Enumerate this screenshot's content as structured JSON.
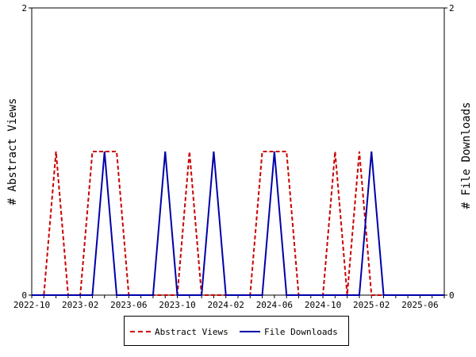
{
  "chart_data": {
    "type": "line",
    "xlabel": "",
    "ylabel_left": "# Abstract Views",
    "ylabel_right": "# File Downloads",
    "ylim": [
      0,
      2
    ],
    "y_ticks": [
      "0",
      "2"
    ],
    "x_tick_labels": [
      "2022-10",
      "2023-02",
      "2023-06",
      "2023-10",
      "2024-02",
      "2024-06",
      "2024-10",
      "2025-02",
      "2025-06"
    ],
    "x": [
      "2022-10",
      "2022-11",
      "2022-12",
      "2023-01",
      "2023-02",
      "2023-03",
      "2023-04",
      "2023-05",
      "2023-06",
      "2023-07",
      "2023-08",
      "2023-09",
      "2023-10",
      "2023-11",
      "2023-12",
      "2024-01",
      "2024-02",
      "2024-03",
      "2024-04",
      "2024-05",
      "2024-06",
      "2024-07",
      "2024-08",
      "2024-09",
      "2024-10",
      "2024-11",
      "2024-12",
      "2025-01",
      "2025-02",
      "2025-03",
      "2025-04",
      "2025-05",
      "2025-06",
      "2025-07",
      "2025-08"
    ],
    "series": [
      {
        "name": "Abstract Views",
        "color": "#cc0000",
        "dash": "dashed",
        "values": [
          0,
          0,
          1,
          0,
          0,
          1,
          1,
          1,
          0,
          0,
          0,
          0,
          0,
          1,
          0,
          0,
          0,
          0,
          0,
          1,
          1,
          1,
          0,
          0,
          0,
          1,
          0,
          1,
          0,
          0,
          0,
          0,
          0,
          0,
          0
        ]
      },
      {
        "name": "File Downloads",
        "color": "#0000aa",
        "dash": "solid",
        "values": [
          0,
          0,
          0,
          0,
          0,
          0,
          1,
          0,
          0,
          0,
          0,
          1,
          0,
          0,
          0,
          1,
          0,
          0,
          0,
          0,
          1,
          0,
          0,
          0,
          0,
          0,
          0,
          0,
          1,
          0,
          0,
          0,
          0,
          0,
          0
        ]
      }
    ],
    "grid": false,
    "legend_position": "bottom"
  }
}
